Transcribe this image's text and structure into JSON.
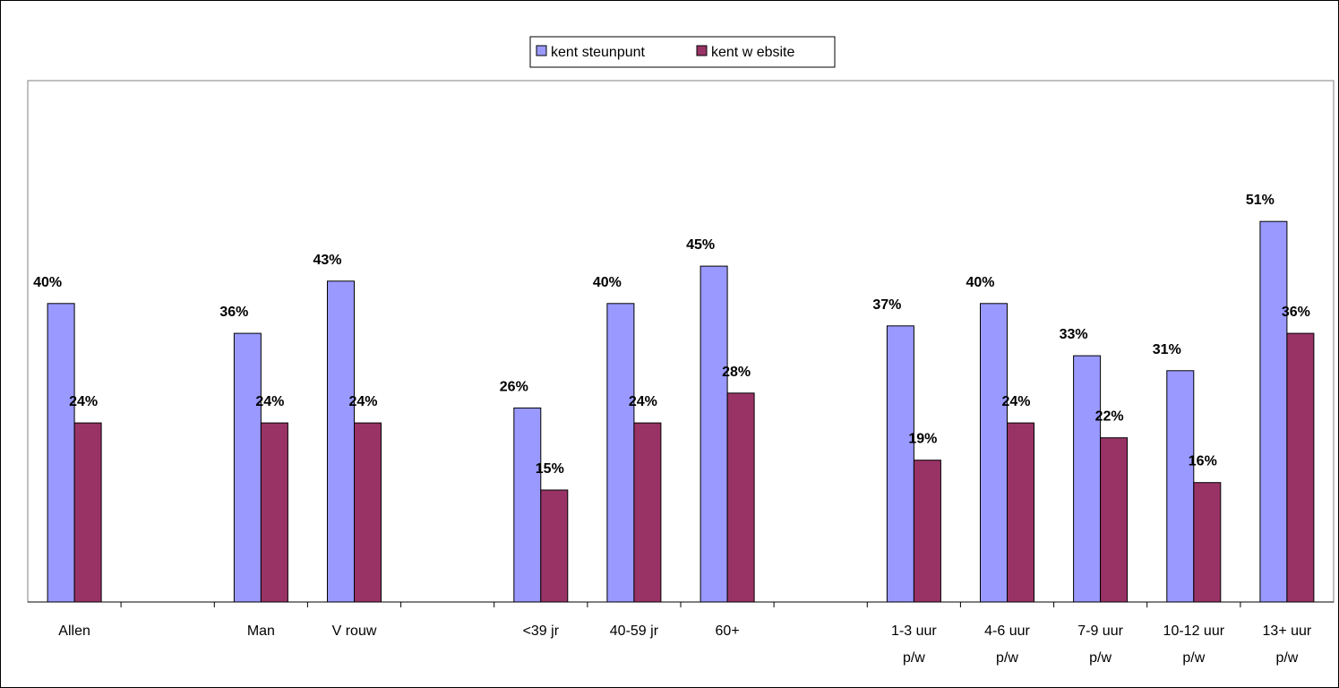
{
  "chart_data": {
    "type": "bar",
    "title": "",
    "xlabel": "",
    "ylabel": "",
    "ylim": [
      0,
      60
    ],
    "grid": false,
    "legend_position": "top-center",
    "categories": [
      [
        "Allen"
      ],
      [
        ""
      ],
      [
        "Man"
      ],
      [
        "V rouw"
      ],
      [
        ""
      ],
      [
        "<39 jr"
      ],
      [
        "40-59 jr"
      ],
      [
        "60+"
      ],
      [
        ""
      ],
      [
        "1-3 uur",
        "p/w"
      ],
      [
        "4-6 uur",
        "p/w"
      ],
      [
        "7-9 uur",
        "p/w"
      ],
      [
        "10-12 uur",
        "p/w"
      ],
      [
        "13+ uur",
        "p/w"
      ]
    ],
    "series": [
      {
        "name": "kent steunpunt",
        "color": "#9999ff",
        "values": [
          40,
          null,
          36,
          43,
          null,
          26,
          40,
          45,
          null,
          37,
          40,
          33,
          31,
          51
        ],
        "labels": [
          "40%",
          "",
          "36%",
          "43%",
          "",
          "26%",
          "40%",
          "45%",
          "",
          "37%",
          "40%",
          "33%",
          "31%",
          "51%"
        ]
      },
      {
        "name": "kent w ebsite",
        "color": "#993366",
        "values": [
          24,
          null,
          24,
          24,
          null,
          15,
          24,
          28,
          null,
          19,
          24,
          22,
          16,
          36
        ],
        "labels": [
          "24%",
          "",
          "24%",
          "24%",
          "",
          "15%",
          "24%",
          "28%",
          "",
          "19%",
          "24%",
          "22%",
          "16%",
          "36%"
        ]
      }
    ]
  }
}
